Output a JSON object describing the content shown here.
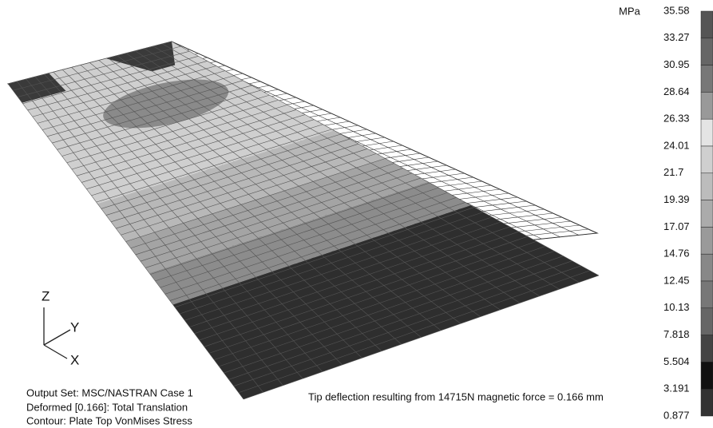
{
  "units": "MPa",
  "legend_labels": [
    "35.58",
    "33.27",
    "30.95",
    "28.64",
    "26.33",
    "24.01",
    "21.7",
    "19.39",
    "17.07",
    "14.76",
    "12.45",
    "10.13",
    "7.818",
    "5.504",
    "3.191",
    "0.877"
  ],
  "axes": {
    "z": "Z",
    "y": "Y",
    "x": "X"
  },
  "info": [
    "Output Set: MSC/NASTRAN Case 1",
    "Deformed [0.166]: Total Translation",
    "Contour: Plate Top VonMises Stress"
  ],
  "note": "Tip deflection resulting from 14715N magnetic force = 0.166 mm"
}
